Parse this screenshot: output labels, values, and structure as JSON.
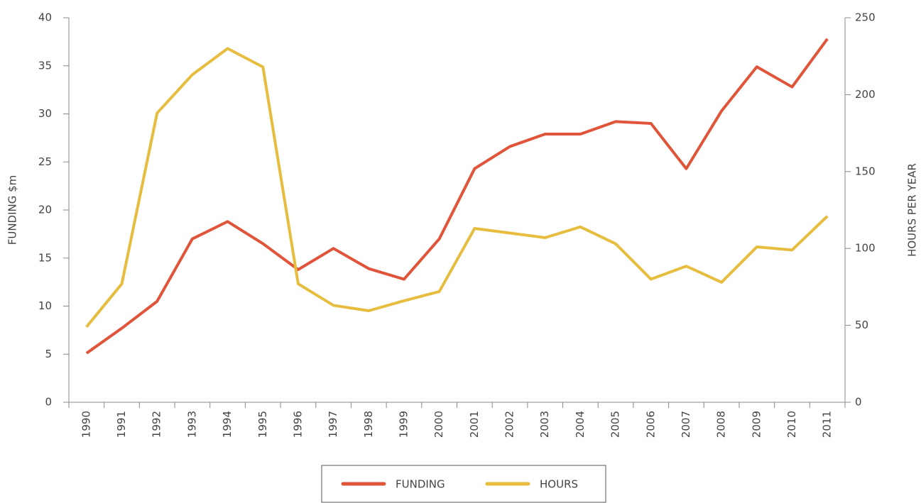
{
  "chart_data": {
    "type": "line",
    "categories": [
      "1990",
      "1991",
      "1992",
      "1993",
      "1994",
      "1995",
      "1996",
      "1997",
      "1998",
      "1999",
      "2000",
      "2001",
      "2002",
      "2003",
      "2004",
      "2005",
      "2006",
      "2007",
      "2008",
      "2009",
      "2010",
      "2011"
    ],
    "series": [
      {
        "name": "FUNDING",
        "color": "#e0553a",
        "axis": "y",
        "values": [
          5.1,
          7.7,
          10.5,
          17.0,
          18.8,
          16.5,
          13.8,
          16.0,
          13.9,
          12.8,
          17.0,
          24.3,
          26.6,
          27.9,
          27.9,
          29.2,
          29.0,
          24.3,
          30.3,
          34.9,
          32.8,
          37.8
        ]
      },
      {
        "name": "HOURS",
        "color": "#e6bd3e",
        "axis": "y2",
        "values": [
          49,
          77,
          188,
          213,
          230,
          218,
          77,
          63,
          59.5,
          66,
          72,
          113,
          110,
          107,
          114,
          103,
          80,
          88.5,
          78,
          101,
          99,
          121
        ]
      }
    ],
    "ylabel": "FUNDING $m",
    "y2label": "HOURS PER YEAR",
    "ylim": [
      0,
      40
    ],
    "yticks": [
      0,
      5,
      10,
      15,
      20,
      25,
      30,
      35,
      40
    ],
    "y2lim": [
      0,
      250
    ],
    "y2ticks": [
      0,
      50,
      100,
      150,
      200,
      250
    ],
    "legend": "bottom"
  }
}
